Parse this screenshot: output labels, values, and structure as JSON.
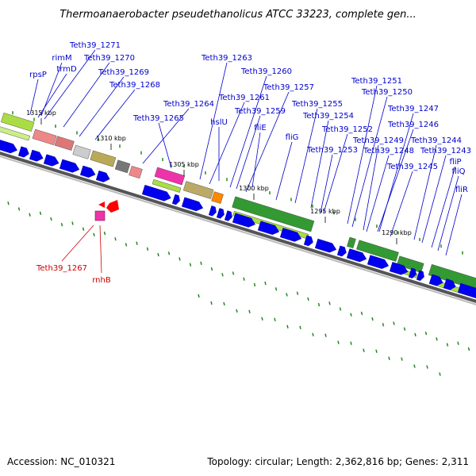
{
  "title": "Thermoanaerobacter pseudethanolicus ATCC 33223, complete gen...",
  "footer": {
    "accession": "Accession: NC_010321",
    "topology": "Topology: circular; Length: 2,362,816 bp; Genes: 2,311"
  },
  "colors": {
    "label_blue": "#0000cc",
    "label_red": "#cc0000",
    "cds_arrow": "#0000ee",
    "ticks_green": "#228822",
    "backbone": "#777777"
  },
  "ticks": [
    {
      "label": "1315 kbp"
    },
    {
      "label": "1310 kbp"
    },
    {
      "label": "1305 kbp"
    },
    {
      "label": "1300 kbp"
    },
    {
      "label": "1295 kbp"
    },
    {
      "label": "1290 kbp"
    }
  ],
  "gene_labels": [
    {
      "text": "Teth39_1271"
    },
    {
      "text": "rimM"
    },
    {
      "text": "trmD"
    },
    {
      "text": "rpsP"
    },
    {
      "text": "Teth39_1270"
    },
    {
      "text": "Teth39_1269"
    },
    {
      "text": "Teth39_1268"
    },
    {
      "text": "Teth39_1263"
    },
    {
      "text": "Teth39_1260"
    },
    {
      "text": "Teth39_1257"
    },
    {
      "text": "Teth39_1261"
    },
    {
      "text": "Teth39_1259"
    },
    {
      "text": "Teth39_1264"
    },
    {
      "text": "Teth39_1265"
    },
    {
      "text": "hslU"
    },
    {
      "text": "fliE"
    },
    {
      "text": "Teth39_1255"
    },
    {
      "text": "fliG"
    },
    {
      "text": "Teth39_1254"
    },
    {
      "text": "Teth39_1252"
    },
    {
      "text": "Teth39_1253"
    },
    {
      "text": "Teth39_1251"
    },
    {
      "text": "Teth39_1250"
    },
    {
      "text": "Teth39_1247"
    },
    {
      "text": "Teth39_1246"
    },
    {
      "text": "Teth39_1249"
    },
    {
      "text": "Teth39_1248"
    },
    {
      "text": "Teth39_1244"
    },
    {
      "text": "Teth39_1243"
    },
    {
      "text": "Teth39_1245"
    },
    {
      "text": "fliP"
    },
    {
      "text": "fliQ"
    },
    {
      "text": "fliR"
    },
    {
      "text": "Teth39_1267"
    },
    {
      "text": "rnhB"
    }
  ]
}
